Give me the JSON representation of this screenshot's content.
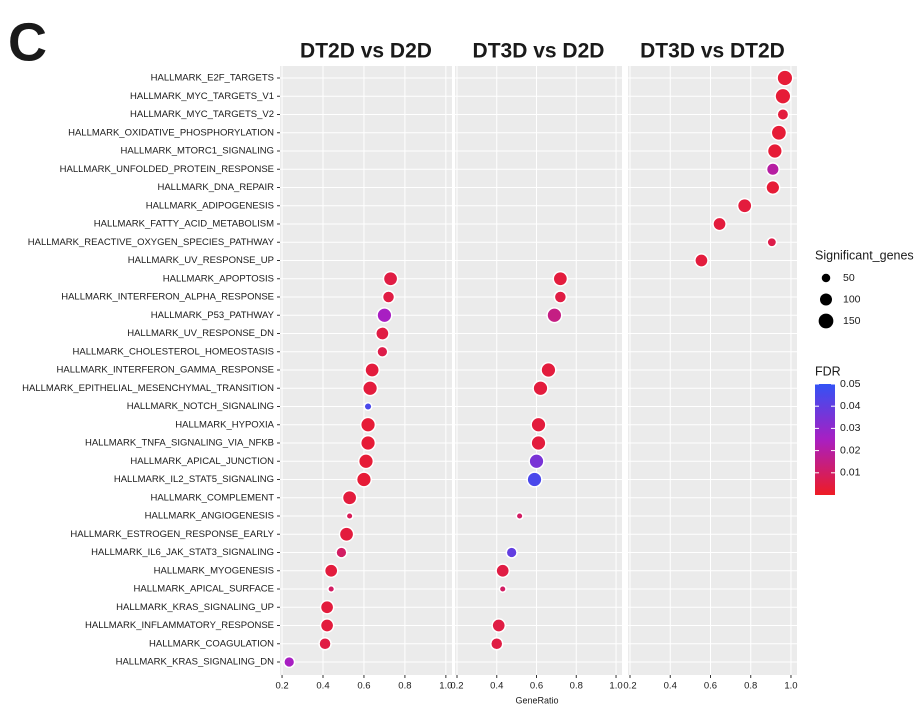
{
  "chart_data": {
    "type": "dotplot",
    "panel_label": "C",
    "x_label": "GeneRatio",
    "categories": [
      "HALLMARK_E2F_TARGETS",
      "HALLMARK_MYC_TARGETS_V1",
      "HALLMARK_MYC_TARGETS_V2",
      "HALLMARK_OXIDATIVE_PHOSPHORYLATION",
      "HALLMARK_MTORC1_SIGNALING",
      "HALLMARK_UNFOLDED_PROTEIN_RESPONSE",
      "HALLMARK_DNA_REPAIR",
      "HALLMARK_ADIPOGENESIS",
      "HALLMARK_FATTY_ACID_METABOLISM",
      "HALLMARK_REACTIVE_OXYGEN_SPECIES_PATHWAY",
      "HALLMARK_UV_RESPONSE_UP",
      "HALLMARK_APOPTOSIS",
      "HALLMARK_INTERFERON_ALPHA_RESPONSE",
      "HALLMARK_P53_PATHWAY",
      "HALLMARK_UV_RESPONSE_DN",
      "HALLMARK_CHOLESTEROL_HOMEOSTASIS",
      "HALLMARK_INTERFERON_GAMMA_RESPONSE",
      "HALLMARK_EPITHELIAL_MESENCHYMAL_TRANSITION",
      "HALLMARK_NOTCH_SIGNALING",
      "HALLMARK_HYPOXIA",
      "HALLMARK_TNFA_SIGNALING_VIA_NFKB",
      "HALLMARK_APICAL_JUNCTION",
      "HALLMARK_IL2_STAT5_SIGNALING",
      "HALLMARK_COMPLEMENT",
      "HALLMARK_ANGIOGENESIS",
      "HALLMARK_ESTROGEN_RESPONSE_EARLY",
      "HALLMARK_IL6_JAK_STAT3_SIGNALING",
      "HALLMARK_MYOGENESIS",
      "HALLMARK_APICAL_SURFACE",
      "HALLMARK_KRAS_SIGNALING_UP",
      "HALLMARK_INFLAMMATORY_RESPONSE",
      "HALLMARK_COAGULATION",
      "HALLMARK_KRAS_SIGNALING_DN"
    ],
    "xlim": [
      0.19,
      1.03
    ],
    "xticks": [
      0.2,
      0.4,
      0.6,
      0.8,
      {
        "value": 1,
        "label": "1.0"
      }
    ],
    "size_legend": {
      "title": "Significant_genes",
      "values": [
        50,
        100,
        150
      ]
    },
    "color_legend": {
      "title": "FDR",
      "lim": [
        0,
        0.05
      ],
      "ticks": [
        0.01,
        0.02,
        0.03,
        0.04,
        0.05
      ],
      "colors": [
        "#ee1c24",
        "#a81fc2",
        "#3352f5"
      ]
    },
    "facets": [
      {
        "title": "DT2D vs D2D",
        "values": [
          null,
          null,
          null,
          null,
          null,
          null,
          null,
          null,
          null,
          null,
          null,
          0.73,
          0.72,
          0.7,
          0.69,
          0.69,
          0.64,
          0.63,
          0.62,
          0.62,
          0.62,
          0.61,
          0.6,
          0.53,
          0.53,
          0.515,
          0.49,
          0.44,
          0.44,
          0.42,
          0.42,
          0.41,
          0.235
        ],
        "sizes": [
          null,
          null,
          null,
          null,
          null,
          null,
          null,
          null,
          null,
          null,
          null,
          140,
          100,
          150,
          120,
          80,
          140,
          150,
          40,
          150,
          150,
          150,
          150,
          140,
          30,
          140,
          80,
          120,
          30,
          120,
          120,
          100,
          80
        ],
        "fdr": [
          null,
          null,
          null,
          null,
          null,
          null,
          null,
          null,
          null,
          null,
          null,
          0.005,
          0.005,
          0.025,
          0.005,
          0.006,
          0.004,
          0.004,
          0.045,
          0.003,
          0.003,
          0.003,
          0.003,
          0.004,
          0.008,
          0.004,
          0.01,
          0.004,
          0.01,
          0.004,
          0.004,
          0.005,
          0.025
        ]
      },
      {
        "title": "DT3D vs D2D",
        "values": [
          null,
          null,
          null,
          null,
          null,
          null,
          null,
          null,
          null,
          null,
          null,
          0.72,
          0.72,
          0.69,
          null,
          null,
          0.66,
          0.62,
          null,
          0.61,
          0.61,
          0.6,
          0.59,
          null,
          0.515,
          null,
          0.475,
          0.43,
          0.43,
          null,
          0.41,
          0.4,
          null
        ],
        "sizes": [
          null,
          null,
          null,
          null,
          null,
          null,
          null,
          null,
          null,
          null,
          null,
          140,
          100,
          150,
          null,
          null,
          150,
          150,
          null,
          150,
          150,
          150,
          150,
          null,
          30,
          null,
          80,
          120,
          30,
          null,
          120,
          100,
          null
        ],
        "fdr": [
          null,
          null,
          null,
          null,
          null,
          null,
          null,
          null,
          null,
          null,
          null,
          0.004,
          0.005,
          0.015,
          null,
          null,
          0.004,
          0.004,
          null,
          0.004,
          0.004,
          0.035,
          0.045,
          null,
          0.01,
          null,
          0.04,
          0.005,
          0.01,
          null,
          0.005,
          0.005,
          null
        ]
      },
      {
        "title": "DT3D vs DT2D",
        "values": [
          0.97,
          0.96,
          0.96,
          0.94,
          0.92,
          0.91,
          0.91,
          0.77,
          0.645,
          0.905,
          0.555,
          null,
          null,
          null,
          null,
          null,
          null,
          null,
          null,
          null,
          null,
          null,
          null,
          null,
          null,
          null,
          null,
          null,
          null,
          null,
          null,
          null,
          null
        ],
        "sizes": [
          170,
          170,
          90,
          160,
          150,
          110,
          130,
          140,
          120,
          60,
          120,
          null,
          null,
          null,
          null,
          null,
          null,
          null,
          null,
          null,
          null,
          null,
          null,
          null,
          null,
          null,
          null,
          null,
          null,
          null,
          null,
          null,
          null
        ],
        "fdr": [
          0.003,
          0.003,
          0.004,
          0.003,
          0.003,
          0.02,
          0.003,
          0.004,
          0.004,
          0.006,
          0.004,
          null,
          null,
          null,
          null,
          null,
          null,
          null,
          null,
          null,
          null,
          null,
          null,
          null,
          null,
          null,
          null,
          null,
          null,
          null,
          null,
          null,
          null
        ]
      }
    ]
  }
}
